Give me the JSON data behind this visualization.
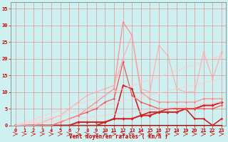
{
  "xlabel": "Vent moyen/en rafales ( km/h )",
  "bg_color": "#cff0f0",
  "grid_color": "#e08080",
  "xlim": [
    -0.5,
    23.5
  ],
  "ylim": [
    0,
    37
  ],
  "xticks": [
    0,
    1,
    2,
    3,
    4,
    5,
    6,
    7,
    8,
    9,
    10,
    11,
    12,
    13,
    14,
    15,
    16,
    17,
    18,
    19,
    20,
    21,
    22,
    23
  ],
  "yticks": [
    0,
    5,
    10,
    15,
    20,
    25,
    30,
    35
  ],
  "series": [
    {
      "x": [
        0,
        1,
        2,
        3,
        4,
        5,
        6,
        7,
        8,
        9,
        10,
        11,
        12,
        13,
        14,
        15,
        16,
        17,
        18,
        19,
        20,
        21,
        22,
        23
      ],
      "y": [
        0,
        0,
        0,
        0,
        0,
        0,
        0,
        0,
        0,
        0,
        0,
        0,
        0,
        0,
        0,
        0,
        0,
        0,
        0,
        0,
        0,
        0,
        0,
        0
      ],
      "color": "#cc0000",
      "alpha": 1.0,
      "lw": 1.5,
      "marker": "D",
      "ms": 1.5
    },
    {
      "x": [
        0,
        1,
        2,
        3,
        4,
        5,
        6,
        7,
        8,
        9,
        10,
        11,
        12,
        13,
        14,
        15,
        16,
        17,
        18,
        19,
        20,
        21,
        22,
        23
      ],
      "y": [
        0,
        0,
        0,
        0,
        0,
        0,
        0,
        1,
        1,
        1,
        1,
        2,
        2,
        2,
        3,
        3,
        4,
        4,
        4,
        5,
        5,
        6,
        6,
        7
      ],
      "color": "#dd2222",
      "alpha": 1.0,
      "lw": 1.5,
      "marker": "D",
      "ms": 2.0
    },
    {
      "x": [
        0,
        1,
        2,
        3,
        4,
        5,
        6,
        7,
        8,
        9,
        10,
        11,
        12,
        13,
        14,
        15,
        16,
        17,
        18,
        19,
        20,
        21,
        22,
        23
      ],
      "y": [
        0,
        0,
        0,
        0,
        0,
        0,
        0,
        0,
        0,
        0,
        1,
        2,
        12,
        11,
        3,
        4,
        4,
        5,
        5,
        5,
        2,
        2,
        0,
        2
      ],
      "color": "#cc2222",
      "alpha": 1.0,
      "lw": 1.2,
      "marker": "D",
      "ms": 1.5
    },
    {
      "x": [
        0,
        1,
        2,
        3,
        4,
        5,
        6,
        7,
        8,
        9,
        10,
        11,
        12,
        13,
        14,
        15,
        16,
        17,
        18,
        19,
        20,
        21,
        22,
        23
      ],
      "y": [
        0,
        0,
        0,
        0,
        0,
        1,
        2,
        3,
        4,
        5,
        7,
        8,
        19,
        9,
        7,
        6,
        5,
        5,
        5,
        5,
        5,
        5,
        5,
        6
      ],
      "color": "#ee5555",
      "alpha": 0.9,
      "lw": 1.0,
      "marker": "D",
      "ms": 1.5
    },
    {
      "x": [
        0,
        1,
        2,
        3,
        4,
        5,
        6,
        7,
        8,
        9,
        10,
        11,
        12,
        13,
        14,
        15,
        16,
        17,
        18,
        19,
        20,
        21,
        22,
        23
      ],
      "y": [
        0,
        0,
        0,
        0,
        0,
        1,
        2,
        3,
        5,
        7,
        9,
        11,
        31,
        27,
        10,
        8,
        7,
        7,
        7,
        7,
        7,
        8,
        8,
        8
      ],
      "color": "#ff8888",
      "alpha": 0.85,
      "lw": 1.0,
      "marker": "D",
      "ms": 1.5
    },
    {
      "x": [
        0,
        1,
        2,
        3,
        4,
        5,
        6,
        7,
        8,
        9,
        10,
        11,
        12,
        13,
        14,
        15,
        16,
        17,
        18,
        19,
        20,
        21,
        22,
        23
      ],
      "y": [
        0,
        0,
        0,
        1,
        2,
        3,
        5,
        7,
        9,
        10,
        11,
        12,
        20,
        27,
        11,
        10,
        24,
        21,
        11,
        10,
        10,
        22,
        14,
        22
      ],
      "color": "#ffaaaa",
      "alpha": 0.8,
      "lw": 1.0,
      "marker": "D",
      "ms": 1.5
    },
    {
      "x": [
        0,
        23
      ],
      "y": [
        0,
        21
      ],
      "color": "#ffcccc",
      "alpha": 0.7,
      "lw": 1.0,
      "marker": null,
      "ms": 0
    },
    {
      "x": [
        0,
        23
      ],
      "y": [
        0,
        14
      ],
      "color": "#ffcccc",
      "alpha": 0.7,
      "lw": 1.0,
      "marker": null,
      "ms": 0
    },
    {
      "x": [
        0,
        23
      ],
      "y": [
        0,
        7
      ],
      "color": "#ffcccc",
      "alpha": 0.7,
      "lw": 1.0,
      "marker": null,
      "ms": 0
    }
  ],
  "tick_color": "#cc0000",
  "label_color": "#cc0000",
  "spine_color": "#888888",
  "tick_fontsize": 5.0,
  "label_fontsize": 5.5
}
